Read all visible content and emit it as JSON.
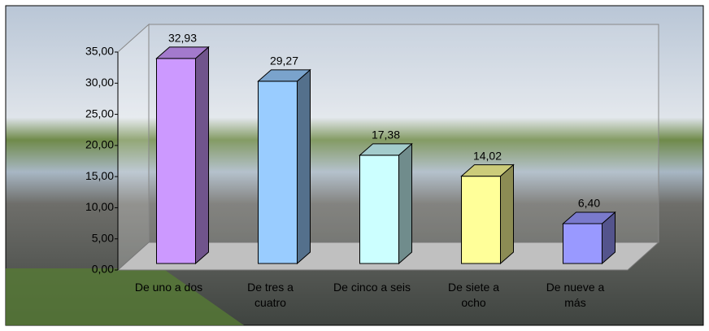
{
  "chart_data": {
    "type": "bar3d",
    "categories": [
      "De uno a dos",
      "De tres a\ncuatro",
      "De cinco a seis",
      "De siete a\nocho",
      "De nueve a\nmás"
    ],
    "series": [
      {
        "values": [
          32.93,
          29.27,
          17.38,
          14.02,
          6.4
        ],
        "value_labels": [
          "32,93",
          "29,27",
          "17,38",
          "14,02",
          "6,40"
        ],
        "colors": [
          "#cc99ff",
          "#99ccff",
          "#ccffff",
          "#ffff99",
          "#9999ff"
        ]
      }
    ],
    "ylim": [
      0,
      35
    ],
    "yticks": [
      {
        "value": 0,
        "label": "0,00"
      },
      {
        "value": 5,
        "label": "5,00"
      },
      {
        "value": 10,
        "label": "10,00"
      },
      {
        "value": 15,
        "label": "15,00"
      },
      {
        "value": 20,
        "label": "20,00"
      },
      {
        "value": 25,
        "label": "25,00"
      },
      {
        "value": 30,
        "label": "30,00"
      },
      {
        "value": 35,
        "label": "35,00"
      }
    ]
  }
}
